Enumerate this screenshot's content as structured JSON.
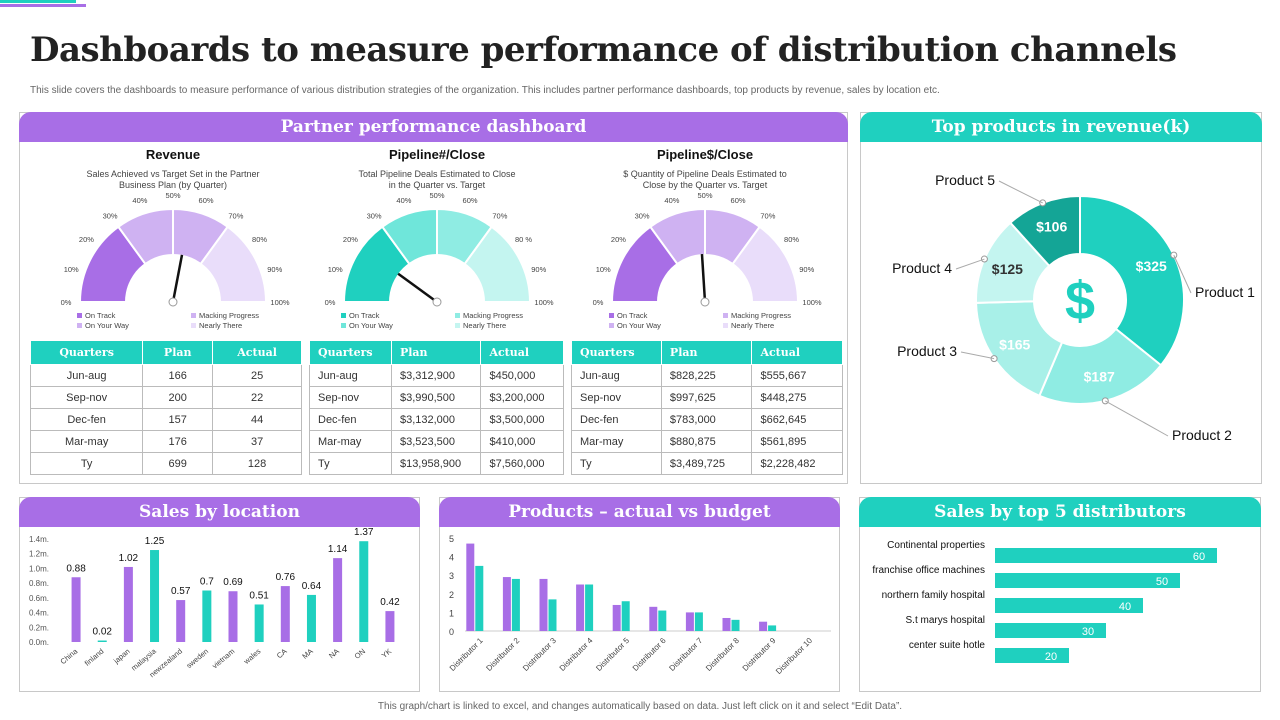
{
  "title": "Dashboards to measure performance of distribution channels",
  "subtitle": "This slide covers the dashboards to measure performance of various distribution strategies of the organization. This includes partner performance dashboards, top products by revenue, sales by location etc.",
  "footer": "This graph/chart is linked to excel, and changes automatically based on data. Just left click on it and select “Edit Data”.",
  "colors": {
    "purple": "#a86ee6",
    "teal": "#1fd0bf",
    "dark_teal": "#14a596",
    "light_teal": "#8fece3",
    "lighter_teal": "#c4f5f0",
    "light_purple": "#cfb2f2",
    "lighter_purple": "#e9ddfa"
  },
  "partner": {
    "header": "Partner performance dashboard",
    "gauges": [
      {
        "title": "Revenue",
        "desc1": "Sales Achieved vs Target Set in the Partner",
        "desc2": "Business Plan (by Quarter)",
        "ticks": [
          "0%",
          "10%",
          "20%",
          "30%",
          "40%",
          "50%",
          "60%",
          "70%",
          "80%",
          "90%",
          "100%"
        ],
        "needle_percent": 56,
        "legend": [
          "On Track",
          "Macking Progress",
          "On Your Way",
          "Nearly There"
        ],
        "segment_colors": [
          "#a86ee6",
          "#cfb2f2",
          "#cfb2f2",
          "#e9ddfa"
        ],
        "needle_color": "#111111",
        "columns": [
          "Quarters",
          "Plan",
          "Actual"
        ],
        "rows": [
          [
            "Jun-aug",
            "166",
            "25"
          ],
          [
            "Sep-nov",
            "200",
            "22"
          ],
          [
            "Dec-fen",
            "157",
            "44"
          ],
          [
            "Mar-may",
            "176",
            "37"
          ],
          [
            "Ty",
            "699",
            "128"
          ]
        ]
      },
      {
        "title": "Pipeline#/Close",
        "desc1": "Total Pipeline Deals Estimated to Close",
        "desc2": "in the Quarter  vs. Target",
        "ticks": [
          "0%",
          "10%",
          "20%",
          "30%",
          "40%",
          "50%",
          "60%",
          "70%",
          "80 %",
          "90%",
          "100%"
        ],
        "needle_percent": 20,
        "legend": [
          "On Track",
          "Macking Progress",
          "On Your Way",
          "Nearly There"
        ],
        "segment_colors": [
          "#1fd0bf",
          "#6fe6da",
          "#8fece3",
          "#c4f5f0"
        ],
        "needle_color": "#111111",
        "columns": [
          "Quarters",
          "Plan",
          "Actual"
        ],
        "rows": [
          [
            "Jun-aug",
            "$3,312,900",
            "$450,000"
          ],
          [
            "Sep-nov",
            "$3,990,500",
            "$3,200,000"
          ],
          [
            "Dec-fen",
            "$3,132,000",
            "$3,500,000"
          ],
          [
            "Mar-may",
            "$3,523,500",
            "$410,000"
          ],
          [
            "Ty",
            "$13,958,900",
            "$7,560,000"
          ]
        ]
      },
      {
        "title": "Pipeline$/Close",
        "desc1": "$ Quantity of Pipeline Deals Estimated to",
        "desc2": "Close by the Quarter  vs. Target",
        "ticks": [
          "0%",
          "10%",
          "20%",
          "30%",
          "40%",
          "50%",
          "60%",
          "70%",
          "80%",
          "90%",
          "100%"
        ],
        "needle_percent": 48,
        "legend": [
          "On Track",
          "Macking Progress",
          "On Your Way",
          "Nearly There"
        ],
        "segment_colors": [
          "#a86ee6",
          "#cfb2f2",
          "#cfb2f2",
          "#e9ddfa"
        ],
        "needle_color": "#111111",
        "columns": [
          "Quarters",
          "Plan",
          "Actual"
        ],
        "rows": [
          [
            "Jun-aug",
            "$828,225",
            "$555,667"
          ],
          [
            "Sep-nov",
            "$997,625",
            "$448,275"
          ],
          [
            "Dec-fen",
            "$783,000",
            "$662,645"
          ],
          [
            "Mar-may",
            "$880,875",
            "$561,895"
          ],
          [
            "Ty",
            "$3,489,725",
            "$2,228,482"
          ]
        ]
      }
    ]
  },
  "top_products": {
    "header": "Top products in revenue(k)",
    "center_icon": "dollar-icon",
    "center_symbol": "$"
  },
  "sales_location": {
    "header": "Sales by location"
  },
  "products_budget": {
    "header": "Products – actual vs budget"
  },
  "distributors": {
    "header": "Sales by top 5 distributors"
  },
  "chart_data": [
    {
      "id": "top_products",
      "type": "pie",
      "title": "Top products in revenue(k)",
      "labels": [
        "Product 1",
        "Product 2",
        "Product 3",
        "Product 4",
        "Product 5"
      ],
      "values": [
        325,
        187,
        165,
        125,
        106
      ],
      "value_labels": [
        "$325",
        "$187",
        "$165",
        "$125",
        "$106"
      ],
      "colors": [
        "#1fd0bf",
        "#8fece3",
        "#a8f0e8",
        "#c4f5f0",
        "#14a596"
      ]
    },
    {
      "id": "sales_by_location",
      "type": "bar",
      "title": "Sales by location",
      "categories": [
        "China",
        "finland",
        "japan",
        "malaysia",
        "newzealand",
        "sweden",
        "vietnam",
        "wales",
        "CA",
        "MA",
        "NA",
        "ON",
        "YK"
      ],
      "values": [
        0.88,
        0.02,
        1.02,
        1.25,
        0.57,
        0.7,
        0.69,
        0.51,
        0.76,
        0.64,
        1.14,
        1.37,
        0.42
      ],
      "value_labels": [
        "0.88",
        "0.02",
        "1.02",
        "1.25",
        "0.57",
        "0.7",
        "0.69",
        "0.51",
        "0.76",
        "0.64",
        "1.14",
        "1.37",
        "0.42"
      ],
      "colors": [
        "#a86ee6",
        "#1fd0bf"
      ],
      "ylim": [
        0,
        1.4
      ],
      "yticks": [
        "0.0m.",
        "0.2m.",
        "0.4m.",
        "0.6m.",
        "0.8m.",
        "1.0m.",
        "1.2m.",
        "1.4m."
      ]
    },
    {
      "id": "products_actual_vs_budget",
      "type": "bar",
      "title": "Products – actual vs budget",
      "categories": [
        "Distributor 1",
        "Distributor 2",
        "Distributor 3",
        "Distributor 4",
        "Distributor 5",
        "Distributor 6",
        "Distributor 7",
        "Distributor 8",
        "Distributor 9",
        "Distributor 10"
      ],
      "series": [
        {
          "name": "Actual",
          "color": "#a86ee6",
          "values": [
            4.7,
            2.9,
            2.8,
            2.5,
            1.4,
            1.3,
            1.0,
            0.7,
            0.5,
            0
          ]
        },
        {
          "name": "Budget",
          "color": "#1fd0bf",
          "values": [
            3.5,
            2.8,
            1.7,
            2.5,
            1.6,
            1.1,
            1.0,
            0.6,
            0.3,
            0
          ]
        }
      ],
      "ylim": [
        0,
        5
      ],
      "yticks": [
        "0",
        "1",
        "2",
        "3",
        "4",
        "5"
      ]
    },
    {
      "id": "sales_by_distributors",
      "type": "bar",
      "orientation": "horizontal",
      "title": "Sales by top 5 distributors",
      "categories": [
        "Continental properties",
        "franchise office machines",
        "northern family hospital",
        "S.t marys hospital",
        "center suite hotle"
      ],
      "values": [
        60,
        50,
        40,
        30,
        20
      ],
      "value_labels": [
        "60",
        "50",
        "40",
        "30",
        "20"
      ],
      "color": "#1fd0bf",
      "xlim": [
        0,
        60
      ]
    }
  ]
}
